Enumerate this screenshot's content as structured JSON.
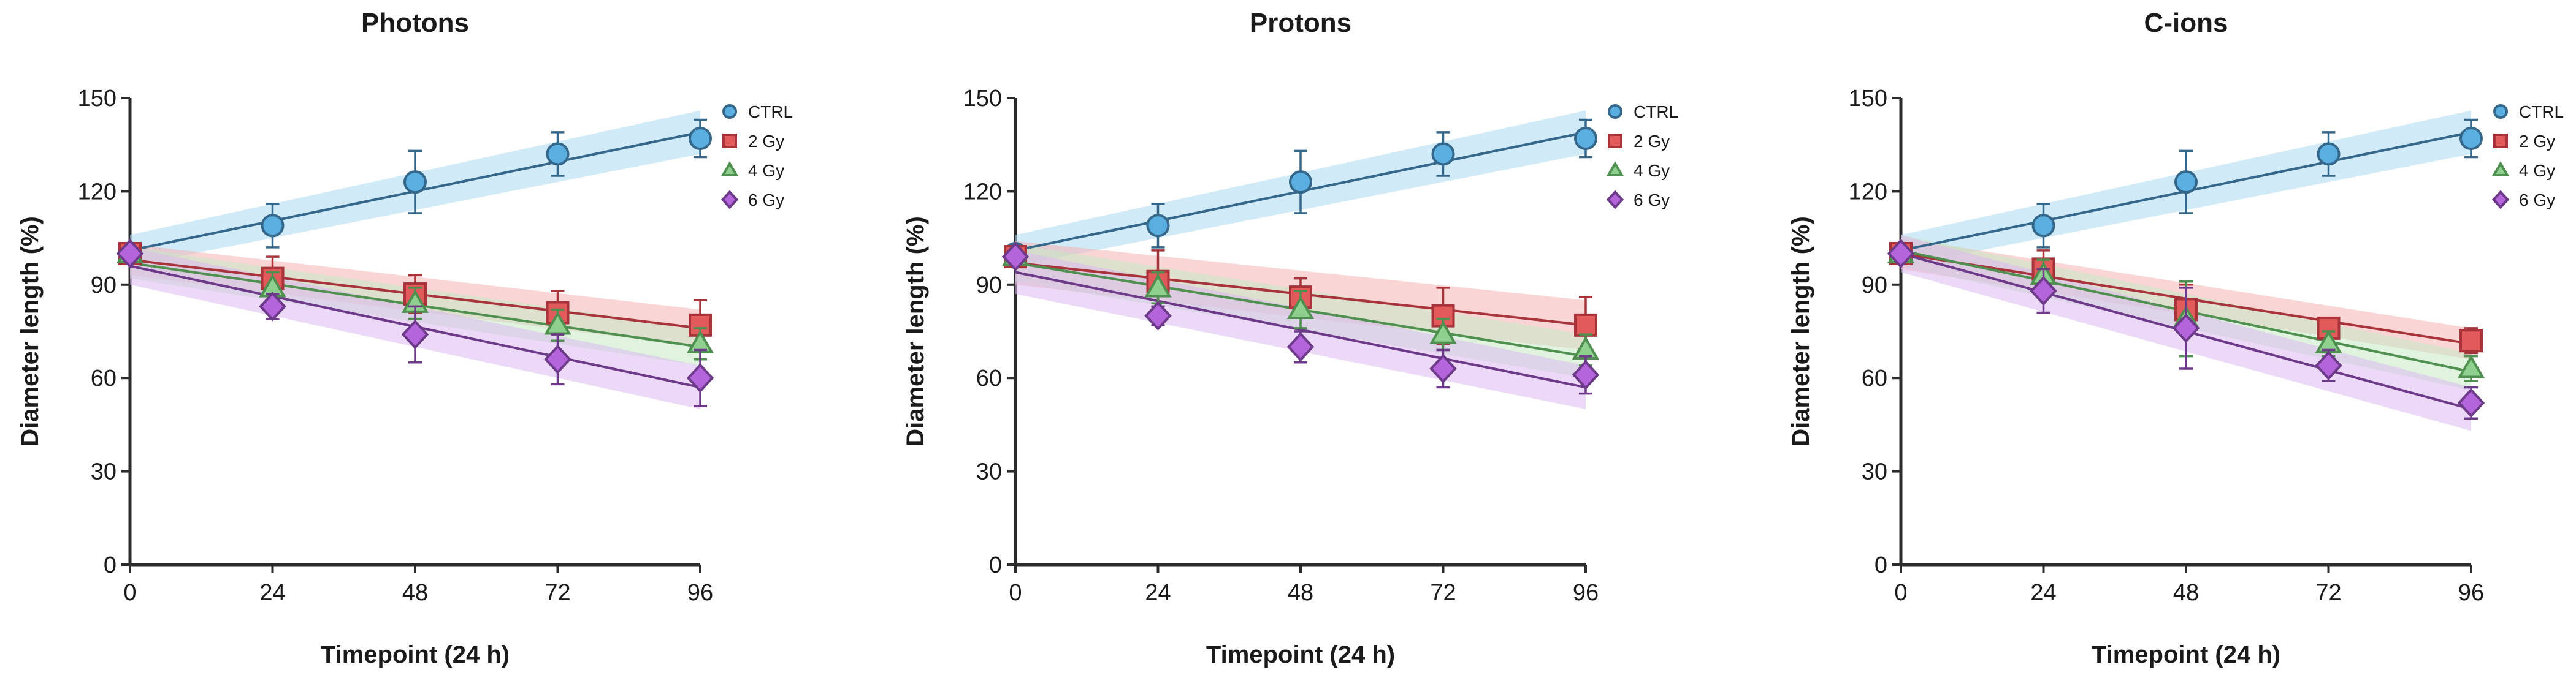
{
  "chart_data": [
    {
      "type": "line",
      "title": "Photons",
      "xlabel": "Timepoint (24 h)",
      "ylabel": "Diameter length (%)",
      "x": [
        0,
        24,
        48,
        72,
        96
      ],
      "xticks": [
        "0",
        "24",
        "48",
        "72",
        "96"
      ],
      "yticks": [
        "0",
        "30",
        "60",
        "90",
        "120",
        "150"
      ],
      "xlim": [
        0,
        96
      ],
      "ylim": [
        0,
        150
      ],
      "legend_position": "top-right",
      "series": [
        {
          "name": "CTRL",
          "marker": "circle",
          "color": "#5aaee0",
          "fit_color": "#34678a",
          "band_color": "#a9d8f2",
          "values": [
            100,
            109,
            123,
            132,
            137
          ],
          "errors": [
            0,
            7,
            10,
            7,
            6
          ],
          "fit": [
            101,
            139
          ],
          "band_halfwidth": [
            5,
            7
          ]
        },
        {
          "name": "2 Gy",
          "marker": "square",
          "color": "#e25a5a",
          "fit_color": "#a8333b",
          "band_color": "#f4b3b3",
          "values": [
            100,
            92,
            87,
            81,
            77
          ],
          "errors": [
            0,
            7,
            6,
            7,
            8
          ],
          "fit": [
            98,
            76
          ],
          "band_halfwidth": [
            5,
            6
          ]
        },
        {
          "name": "4 Gy",
          "marker": "triangle",
          "color": "#8ed08e",
          "fit_color": "#4f8f4f",
          "band_color": "#c5e9c5",
          "values": [
            100,
            89,
            84,
            77,
            71
          ],
          "errors": [
            0,
            5,
            5,
            5,
            5
          ],
          "fit": [
            97,
            70
          ],
          "band_halfwidth": [
            5,
            6
          ]
        },
        {
          "name": "6 Gy",
          "marker": "diamond",
          "color": "#b465dc",
          "fit_color": "#6d3a8a",
          "band_color": "#ddb9f0",
          "values": [
            100,
            83,
            74,
            66,
            60
          ],
          "errors": [
            0,
            4,
            9,
            8,
            9
          ],
          "fit": [
            96,
            57
          ],
          "band_halfwidth": [
            6,
            7
          ]
        }
      ]
    },
    {
      "type": "line",
      "title": "Protons",
      "xlabel": "Timepoint (24 h)",
      "ylabel": "Diameter length (%)",
      "x": [
        0,
        24,
        48,
        72,
        96
      ],
      "xticks": [
        "0",
        "24",
        "48",
        "72",
        "96"
      ],
      "yticks": [
        "0",
        "30",
        "60",
        "90",
        "120",
        "150"
      ],
      "xlim": [
        0,
        96
      ],
      "ylim": [
        0,
        150
      ],
      "legend_position": "top-right",
      "series": [
        {
          "name": "CTRL",
          "marker": "circle",
          "color": "#5aaee0",
          "fit_color": "#34678a",
          "band_color": "#a9d8f2",
          "values": [
            100,
            109,
            123,
            132,
            137
          ],
          "errors": [
            0,
            7,
            10,
            7,
            6
          ],
          "fit": [
            101,
            139
          ],
          "band_halfwidth": [
            5,
            7
          ]
        },
        {
          "name": "2 Gy",
          "marker": "square",
          "color": "#e25a5a",
          "fit_color": "#a8333b",
          "band_color": "#f4b3b3",
          "values": [
            99,
            91,
            86,
            80,
            77
          ],
          "errors": [
            0,
            10,
            6,
            9,
            9
          ],
          "fit": [
            97,
            77
          ],
          "band_halfwidth": [
            7,
            8
          ]
        },
        {
          "name": "4 Gy",
          "marker": "triangle",
          "color": "#8ed08e",
          "fit_color": "#4f8f4f",
          "band_color": "#c5e9c5",
          "values": [
            99,
            89,
            82,
            74,
            69
          ],
          "errors": [
            0,
            5,
            6,
            5,
            5
          ],
          "fit": [
            97,
            67
          ],
          "band_halfwidth": [
            6,
            7
          ]
        },
        {
          "name": "6 Gy",
          "marker": "diamond",
          "color": "#b465dc",
          "fit_color": "#6d3a8a",
          "band_color": "#ddb9f0",
          "values": [
            99,
            80,
            70,
            63,
            61
          ],
          "errors": [
            0,
            3,
            5,
            6,
            6
          ],
          "fit": [
            94,
            57
          ],
          "band_halfwidth": [
            7,
            7
          ]
        }
      ]
    },
    {
      "type": "line",
      "title": "C-ions",
      "xlabel": "Timepoint (24 h)",
      "ylabel": "Diameter length (%)",
      "x": [
        0,
        24,
        48,
        72,
        96
      ],
      "xticks": [
        "0",
        "24",
        "48",
        "72",
        "96"
      ],
      "yticks": [
        "0",
        "30",
        "60",
        "90",
        "120",
        "150"
      ],
      "xlim": [
        0,
        96
      ],
      "ylim": [
        0,
        150
      ],
      "legend_position": "top-right",
      "series": [
        {
          "name": "CTRL",
          "marker": "circle",
          "color": "#5aaee0",
          "fit_color": "#34678a",
          "band_color": "#a9d8f2",
          "values": [
            100,
            109,
            123,
            132,
            137
          ],
          "errors": [
            0,
            7,
            10,
            7,
            6
          ],
          "fit": [
            101,
            139
          ],
          "band_halfwidth": [
            5,
            7
          ]
        },
        {
          "name": "2 Gy",
          "marker": "square",
          "color": "#e25a5a",
          "fit_color": "#a8333b",
          "band_color": "#f4b3b3",
          "values": [
            100,
            95,
            82,
            76,
            72
          ],
          "errors": [
            0,
            6,
            8,
            3,
            4
          ],
          "fit": [
            100,
            71
          ],
          "band_halfwidth": [
            5,
            5
          ]
        },
        {
          "name": "4 Gy",
          "marker": "triangle",
          "color": "#8ed08e",
          "fit_color": "#4f8f4f",
          "band_color": "#c5e9c5",
          "values": [
            100,
            93,
            79,
            71,
            63
          ],
          "errors": [
            0,
            5,
            12,
            4,
            4
          ],
          "fit": [
            101,
            62
          ],
          "band_halfwidth": [
            5,
            6
          ]
        },
        {
          "name": "6 Gy",
          "marker": "diamond",
          "color": "#b465dc",
          "fit_color": "#6d3a8a",
          "band_color": "#ddb9f0",
          "values": [
            100,
            88,
            76,
            64,
            52
          ],
          "errors": [
            0,
            7,
            13,
            5,
            5
          ],
          "fit": [
            100,
            50
          ],
          "band_halfwidth": [
            6,
            7
          ]
        }
      ]
    }
  ]
}
